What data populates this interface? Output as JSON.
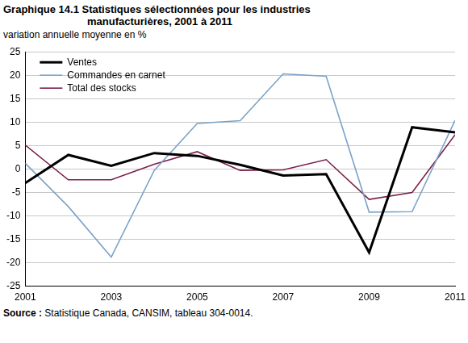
{
  "chart_data": {
    "type": "line",
    "title": "Graphique 14.1  Statistiques sélectionnées pour les industries manufacturières, 2001 à 2011",
    "y_label": "variation annuelle moyenne en %",
    "source": "Source : Statistique Canada, CANSIM, tableau 304-0014.",
    "x": [
      2001,
      2002,
      2003,
      2004,
      2005,
      2006,
      2007,
      2008,
      2009,
      2010,
      2011
    ],
    "series": [
      {
        "name": "Ventes",
        "color": "#000000",
        "values": [
          -3.0,
          3.0,
          0.7,
          3.4,
          2.8,
          0.9,
          -1.4,
          -1.1,
          -17.8,
          8.9,
          7.8
        ]
      },
      {
        "name": "Commandes en carnet",
        "color": "#7ba3c8",
        "values": [
          1.2,
          -8.0,
          -18.8,
          -0.3,
          9.7,
          10.3,
          20.3,
          19.8,
          -9.2,
          -9.1,
          10.4
        ]
      },
      {
        "name": "Total des stocks",
        "color": "#7a1f4a",
        "values": [
          5.1,
          -2.3,
          -2.3,
          1.0,
          3.7,
          -0.3,
          -0.2,
          2.0,
          -6.5,
          -5.0,
          7.3
        ]
      }
    ],
    "xlim": [
      2001,
      2011
    ],
    "xticks": [
      2001,
      2003,
      2005,
      2007,
      2009,
      2011
    ],
    "ylim": [
      -25,
      25
    ],
    "yticks": [
      -25,
      -20,
      -15,
      -10,
      -5,
      0,
      5,
      10,
      15,
      20,
      25
    ],
    "grid": true,
    "legend": "upper left"
  }
}
